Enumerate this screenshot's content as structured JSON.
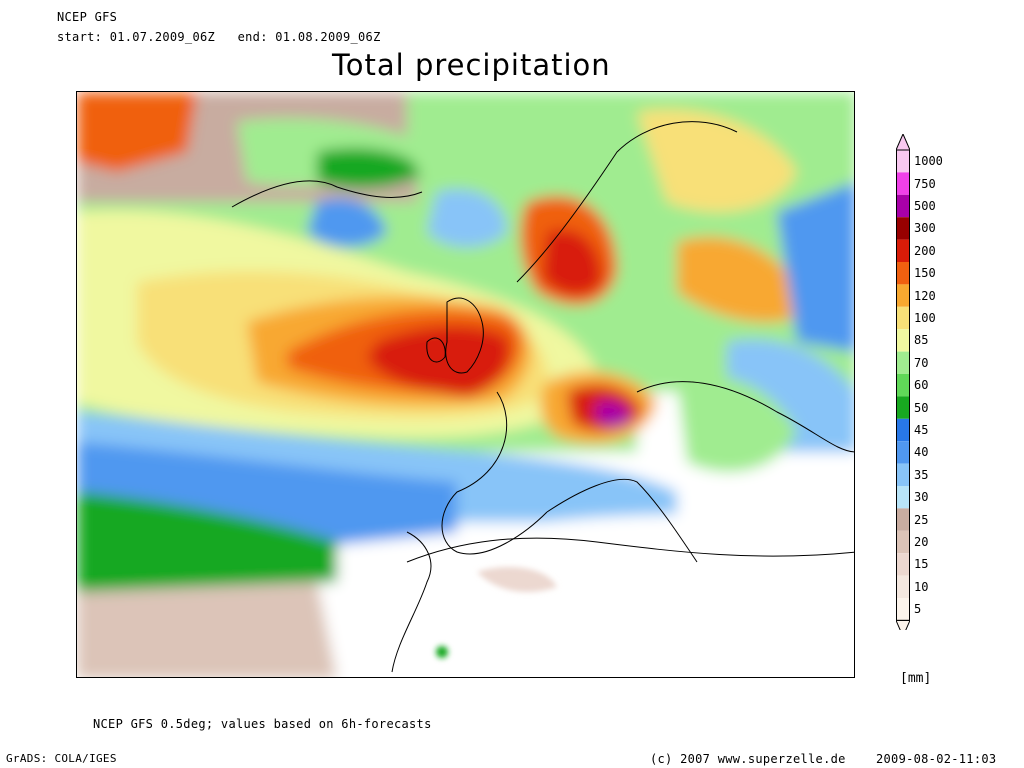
{
  "header": {
    "model": "NCEP GFS",
    "start_label": "start:",
    "start_value": "01.07.2009_06Z",
    "end_label": "end:",
    "end_value": "01.08.2009_06Z",
    "title": "Total precipitation"
  },
  "legend": {
    "unit": "[mm]",
    "levels": [
      {
        "value": "1000",
        "color": "#f8c8f0"
      },
      {
        "value": "750",
        "color": "#f040e8"
      },
      {
        "value": "500",
        "color": "#a800a8"
      },
      {
        "value": "300",
        "color": "#980000"
      },
      {
        "value": "200",
        "color": "#d81c08"
      },
      {
        "value": "150",
        "color": "#f06010"
      },
      {
        "value": "120",
        "color": "#f8a830"
      },
      {
        "value": "100",
        "color": "#f8e078"
      },
      {
        "value": "85",
        "color": "#f0f8a0"
      },
      {
        "value": "70",
        "color": "#a0ec90"
      },
      {
        "value": "60",
        "color": "#60d858"
      },
      {
        "value": "50",
        "color": "#18a820"
      },
      {
        "value": "45",
        "color": "#2878e8"
      },
      {
        "value": "40",
        "color": "#5098f0"
      },
      {
        "value": "35",
        "color": "#88c4f8"
      },
      {
        "value": "30",
        "color": "#b8e4f8"
      },
      {
        "value": "25",
        "color": "#c8aca0"
      },
      {
        "value": "20",
        "color": "#dcc4b8"
      },
      {
        "value": "15",
        "color": "#ecd8d0"
      },
      {
        "value": "10",
        "color": "#f4e8e0"
      },
      {
        "value": "5",
        "color": "#fcf4ec"
      }
    ]
  },
  "footer": {
    "note": "NCEP GFS 0.5deg; values based on 6h-forecasts",
    "software": "GrADS: COLA/IGES",
    "copyright": "(c) 2007 www.superzelle.de",
    "timestamp": "2009-08-02-11:03"
  }
}
